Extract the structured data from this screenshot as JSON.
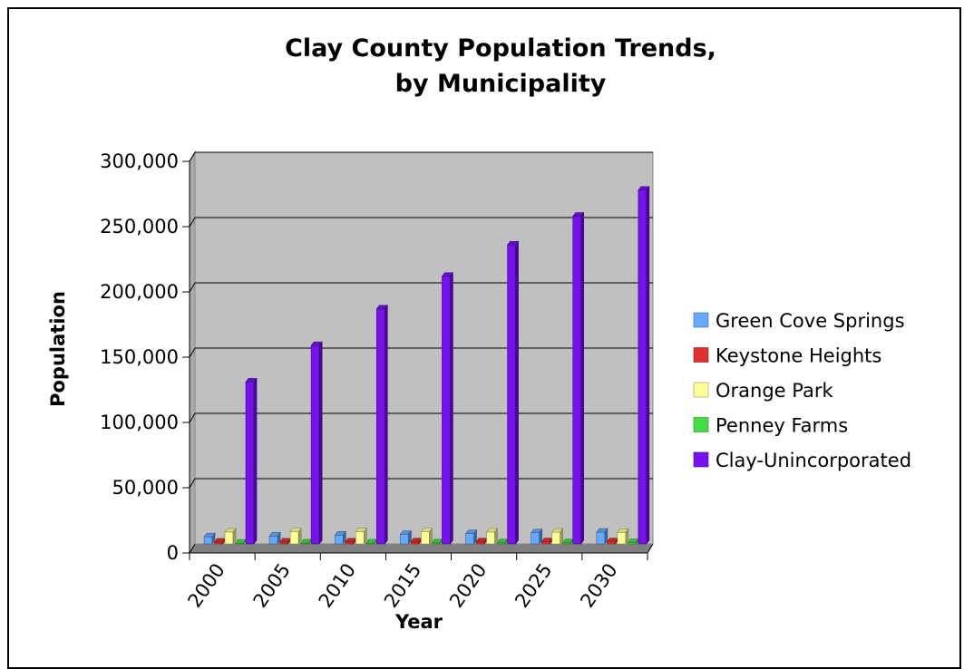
{
  "chart_data": {
    "type": "bar",
    "title_lines": [
      "Clay County Population Trends,",
      "by Municipality"
    ],
    "xlabel": "Year",
    "ylabel": "Population",
    "categories": [
      "2000",
      "2005",
      "2010",
      "2015",
      "2020",
      "2025",
      "2030"
    ],
    "ylim": [
      0,
      300000
    ],
    "y_ticks": [
      "0",
      "50,000",
      "100,000",
      "150,000",
      "200,000",
      "250,000",
      "300,000"
    ],
    "grid": true,
    "legend_position": "right",
    "series": [
      {
        "name": "Green Cove Springs",
        "color": "#66aaff",
        "values": [
          5400,
          6000,
          6700,
          7300,
          7900,
          8500,
          9000
        ]
      },
      {
        "name": "Keystone Heights",
        "color": "#e03030",
        "values": [
          1350,
          1400,
          1450,
          1500,
          1550,
          1600,
          1650
        ]
      },
      {
        "name": "Orange Park",
        "color": "#ffff99",
        "values": [
          9100,
          9200,
          9300,
          9200,
          9100,
          9000,
          8800
        ]
      },
      {
        "name": "Penney Farms",
        "color": "#44dd44",
        "values": [
          600,
          650,
          700,
          750,
          800,
          850,
          900
        ]
      },
      {
        "name": "Clay-Unincorporated",
        "color": "#7711ee",
        "values": [
          124000,
          152000,
          180000,
          205000,
          229000,
          251000,
          271000
        ]
      }
    ]
  }
}
